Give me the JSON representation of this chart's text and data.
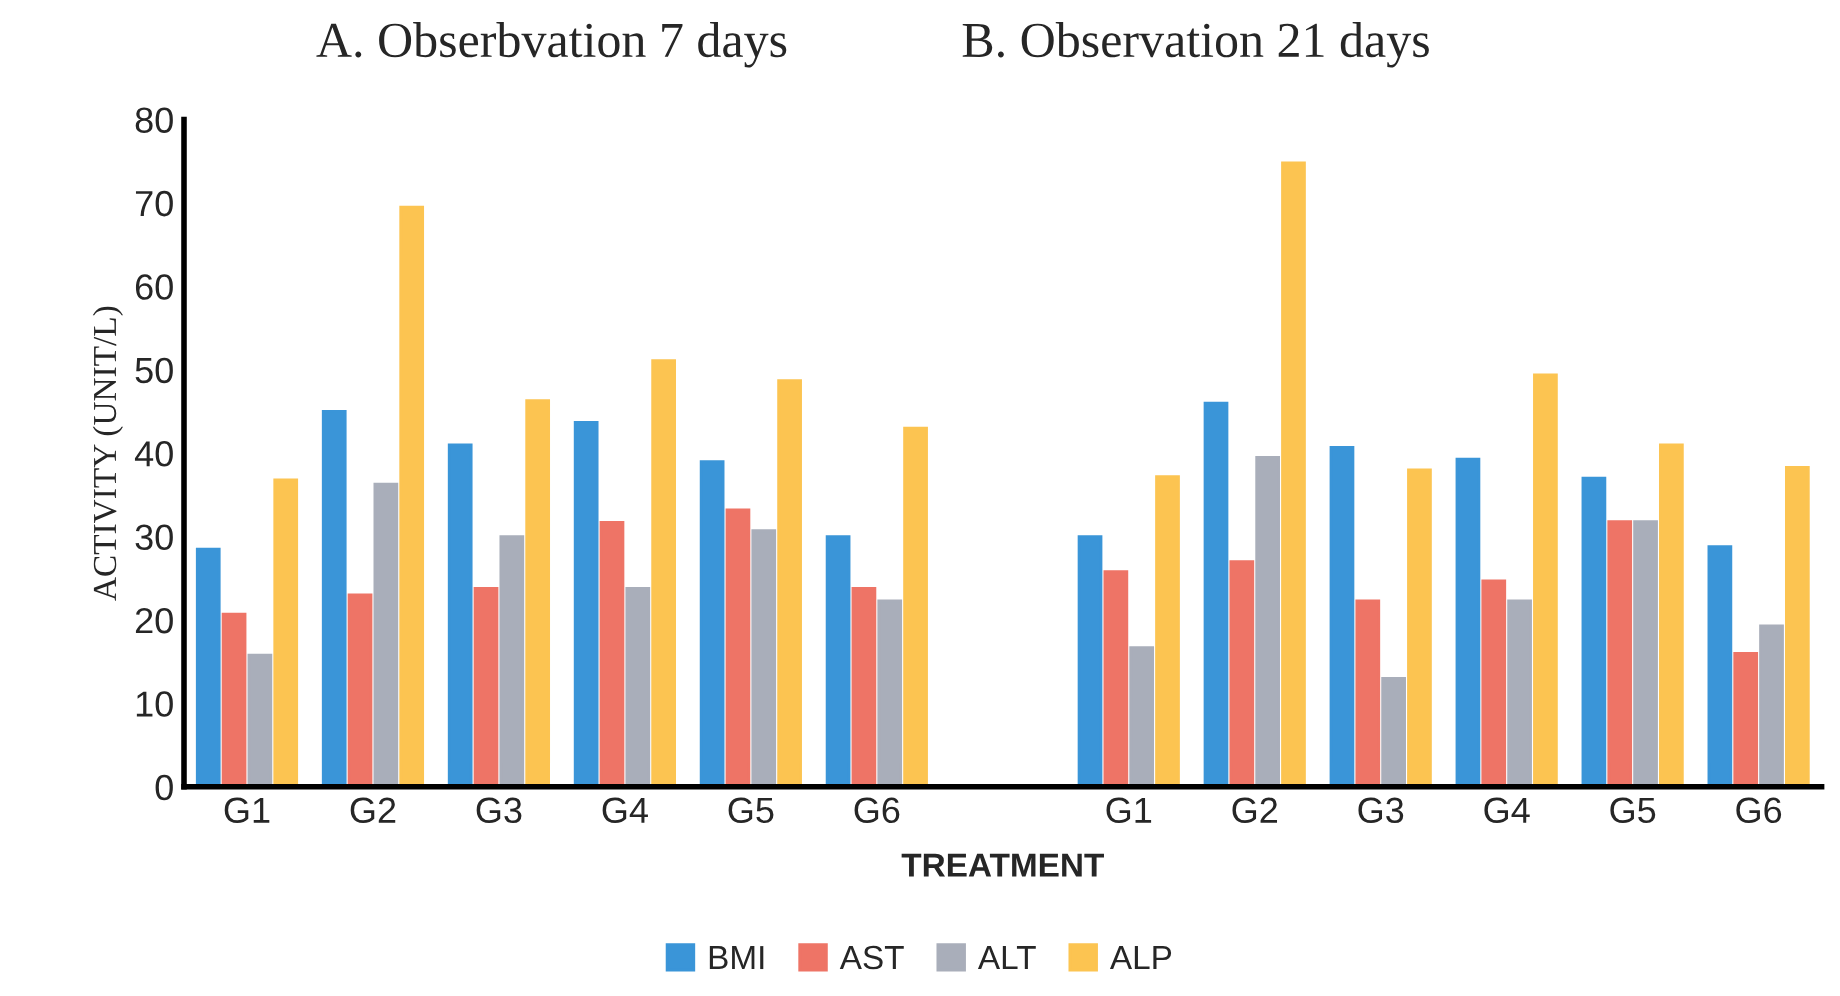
{
  "chart_data": {
    "type": "bar",
    "annotations": [
      "A. Obserbvation 7 days",
      "B. Observation 21 days"
    ],
    "xlabel": "TREATMENT",
    "ylabel": "ACTIVITY (UNIT/L)",
    "categories": [
      "G1",
      "G2",
      "G3",
      "G4",
      "G5",
      "G6",
      null,
      "G1",
      "G2",
      "G3",
      "G4",
      "G5",
      "G6"
    ],
    "series": [
      {
        "name": "BMI",
        "color": "#3a95d8",
        "values": [
          28.5,
          45,
          41,
          43.7,
          39,
          30,
          null,
          30,
          46,
          40.7,
          39.3,
          37,
          28.8
        ]
      },
      {
        "name": "AST",
        "color": "#ee7466",
        "values": [
          20.7,
          23,
          23.8,
          31.7,
          33.2,
          23.8,
          null,
          25.8,
          27,
          22.3,
          24.7,
          31.8,
          16
        ]
      },
      {
        "name": "ALT",
        "color": "#a9aeba",
        "values": [
          15.8,
          36.3,
          30,
          23.8,
          30.7,
          22.3,
          null,
          16.7,
          39.5,
          13,
          22.3,
          31.8,
          19.3
        ]
      },
      {
        "name": "ALP",
        "color": "#fcc451",
        "values": [
          36.8,
          69.5,
          46.3,
          51.1,
          48.7,
          43,
          null,
          37.2,
          74.8,
          38,
          49.4,
          41,
          38.3
        ]
      }
    ],
    "ylim": [
      0,
      80
    ],
    "yticks": [
      0,
      10,
      20,
      30,
      40,
      50,
      60,
      70,
      80
    ],
    "grid": false,
    "legend": "bottom"
  }
}
